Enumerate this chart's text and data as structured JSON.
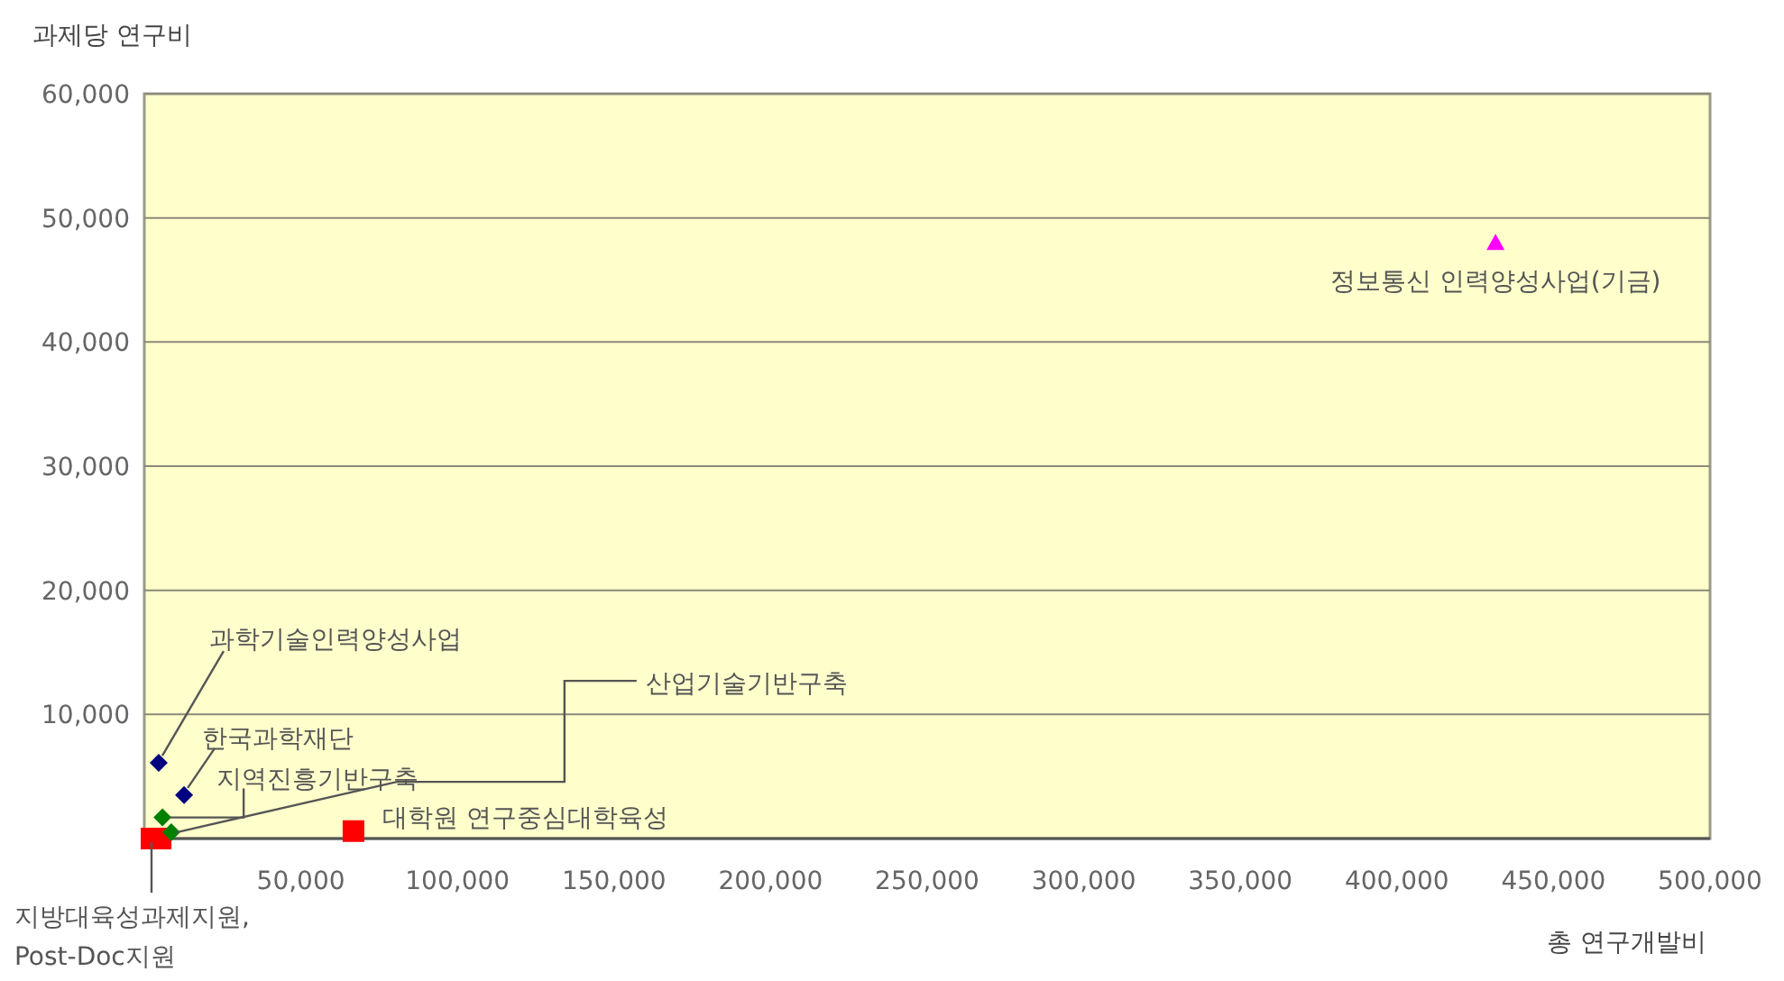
{
  "chart_data": {
    "type": "scatter",
    "xlabel": "총 연구개발비",
    "ylabel": "과제당 연구비",
    "xlim": [
      0,
      500000
    ],
    "ylim": [
      0,
      60000
    ],
    "xticks": [
      {
        "value": 50000,
        "label": "50,000"
      },
      {
        "value": 100000,
        "label": "100,000"
      },
      {
        "value": 150000,
        "label": "150,000"
      },
      {
        "value": 200000,
        "label": "200,000"
      },
      {
        "value": 250000,
        "label": "250,000"
      },
      {
        "value": 300000,
        "label": "300,000"
      },
      {
        "value": 350000,
        "label": "350,000"
      },
      {
        "value": 400000,
        "label": "400,000"
      },
      {
        "value": 450000,
        "label": "450,000"
      },
      {
        "value": 500000,
        "label": "500,000"
      }
    ],
    "yticks": [
      {
        "value": 10000,
        "label": "10,000"
      },
      {
        "value": 20000,
        "label": "20,000"
      },
      {
        "value": 30000,
        "label": "30,000"
      },
      {
        "value": 40000,
        "label": "40,000"
      },
      {
        "value": 50000,
        "label": "50,000"
      },
      {
        "value": 60000,
        "label": "60,000"
      }
    ],
    "grid": "y",
    "series": [
      {
        "color": "#ff00ff",
        "marker": "triangle",
        "x": [
          431500
        ],
        "values": [
          48000
        ]
      },
      {
        "color": "#000080",
        "marker": "diamond",
        "x": [
          4600,
          12700
        ],
        "values": [
          6100,
          3500
        ]
      },
      {
        "color": "#ff0000",
        "marker": "square",
        "x": [
          2300,
          5200,
          66800
        ],
        "values": [
          0,
          0,
          600
        ]
      },
      {
        "color": "#008000",
        "marker": "diamond",
        "x": [
          5800,
          8600
        ],
        "values": [
          1700,
          500
        ]
      }
    ],
    "annotations": [
      {
        "text": "정보통신 인력양성사업(기금)",
        "x": 431500,
        "y": 48000
      },
      {
        "text": "과학기술인력양성사업",
        "x": 4600,
        "y": 6100
      },
      {
        "text": "한국과학재단",
        "x": 12700,
        "y": 3500
      },
      {
        "text": "지역진흥기반구축",
        "x": 5800,
        "y": 1700
      },
      {
        "text": "산업기술기반구축",
        "x": 8600,
        "y": 500
      },
      {
        "text": "대학원 연구중심대학육성",
        "x": 66800,
        "y": 600
      },
      {
        "text": "지방대육성과제지원,\nPost-Doc지원",
        "x": 2300,
        "y": 0
      }
    ]
  }
}
